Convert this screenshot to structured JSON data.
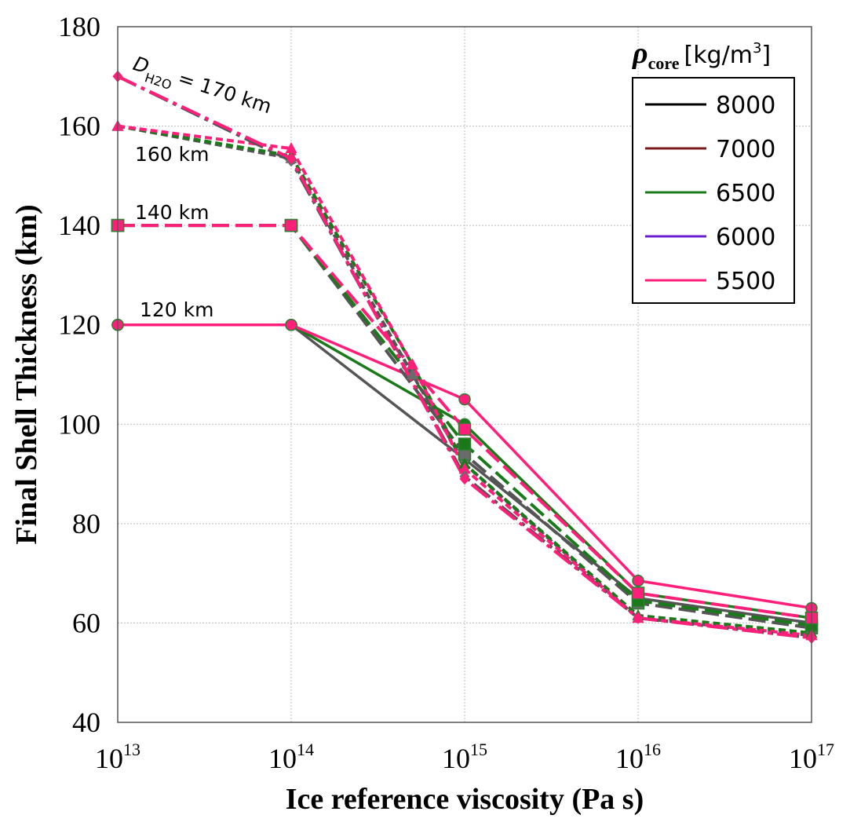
{
  "chart_data": {
    "type": "line",
    "xlabel": "Ice reference viscosity (Pa s)",
    "ylabel": "Final Shell Thickness (km)",
    "x_scale": "log",
    "xlim": [
      10000000000000.0,
      1e+17
    ],
    "ylim": [
      40,
      180
    ],
    "x_ticks": [
      {
        "base": "10",
        "exp": "13"
      },
      {
        "base": "10",
        "exp": "14"
      },
      {
        "base": "10",
        "exp": "15"
      },
      {
        "base": "10",
        "exp": "16"
      },
      {
        "base": "10",
        "exp": "17"
      }
    ],
    "y_ticks": [
      "40",
      "60",
      "80",
      "100",
      "120",
      "140",
      "160",
      "180"
    ],
    "grid": true,
    "legend": {
      "title_symbol": "ρ",
      "title_sub": "core",
      "title_unit": "[kg/m",
      "title_unit_sup": "3",
      "title_unit_end": "]",
      "placement": "top-right",
      "entries": [
        {
          "label": "8000",
          "color": "#000000"
        },
        {
          "label": "7000",
          "color": "#7b1a1a"
        },
        {
          "label": "6500",
          "color": "#1a7a1a"
        },
        {
          "label": "6000",
          "color": "#6a1fd0"
        },
        {
          "label": "5500",
          "color": "#ff1f7a"
        }
      ]
    },
    "annotations": {
      "d170_symbol": "D",
      "d170_sub": "H2O",
      "d170_text": "= 170 km",
      "d160": "160 km",
      "d140": "140 km",
      "d120": "120 km"
    },
    "series": [
      {
        "group": "120 km",
        "density": "8000",
        "x": [
          10000000000000.0,
          100000000000000.0,
          1000000000000000.0,
          1e+16,
          1e+17
        ],
        "y": [
          120,
          120,
          93,
          65,
          60
        ]
      },
      {
        "group": "120 km",
        "density": "6500",
        "x": [
          10000000000000.0,
          100000000000000.0,
          1000000000000000.0,
          1e+16,
          1e+17
        ],
        "y": [
          120,
          120,
          100,
          66,
          61
        ]
      },
      {
        "group": "120 km",
        "density": "5500",
        "x": [
          10000000000000.0,
          100000000000000.0,
          1000000000000000.0,
          1e+16,
          1e+17
        ],
        "y": [
          120,
          120,
          105,
          68.5,
          63
        ]
      },
      {
        "group": "140 km",
        "density": "8000",
        "x": [
          10000000000000.0,
          100000000000000.0,
          1000000000000000.0,
          1e+16,
          1e+17
        ],
        "y": [
          140,
          140,
          94,
          64,
          59
        ]
      },
      {
        "group": "140 km",
        "density": "6500",
        "x": [
          10000000000000.0,
          100000000000000.0,
          1000000000000000.0,
          1e+16,
          1e+17
        ],
        "y": [
          140,
          140,
          96,
          64.5,
          59.5
        ]
      },
      {
        "group": "140 km",
        "density": "5500",
        "x": [
          10000000000000.0,
          100000000000000.0,
          1000000000000000.0,
          1e+16,
          1e+17
        ],
        "y": [
          140,
          140,
          99,
          66,
          61
        ]
      },
      {
        "group": "160 km",
        "density": "8000",
        "x": [
          10000000000000.0,
          100000000000000.0,
          500000000000000.0,
          1000000000000000.0,
          1e+16,
          1e+17
        ],
        "y": [
          160,
          153.5,
          110,
          92,
          61,
          57.5
        ]
      },
      {
        "group": "160 km",
        "density": "6500",
        "x": [
          10000000000000.0,
          100000000000000.0,
          500000000000000.0,
          1000000000000000.0,
          1e+16,
          1e+17
        ],
        "y": [
          160,
          154,
          112,
          92,
          61.5,
          58
        ]
      },
      {
        "group": "160 km",
        "density": "5500",
        "x": [
          10000000000000.0,
          100000000000000.0,
          500000000000000.0,
          1000000000000000.0,
          1e+16,
          1e+17
        ],
        "y": [
          160,
          155.5,
          112,
          91,
          61,
          57.5
        ]
      },
      {
        "group": "170 km",
        "density": "8000",
        "x": [
          10000000000000.0,
          100000000000000.0,
          1000000000000000.0,
          1e+16,
          1e+17
        ],
        "y": [
          170,
          153,
          89.5,
          61,
          57
        ]
      },
      {
        "group": "170 km",
        "density": "5500",
        "x": [
          10000000000000.0,
          100000000000000.0,
          1000000000000000.0,
          1e+16,
          1e+17
        ],
        "y": [
          170,
          153.5,
          89,
          61,
          57
        ]
      }
    ]
  }
}
